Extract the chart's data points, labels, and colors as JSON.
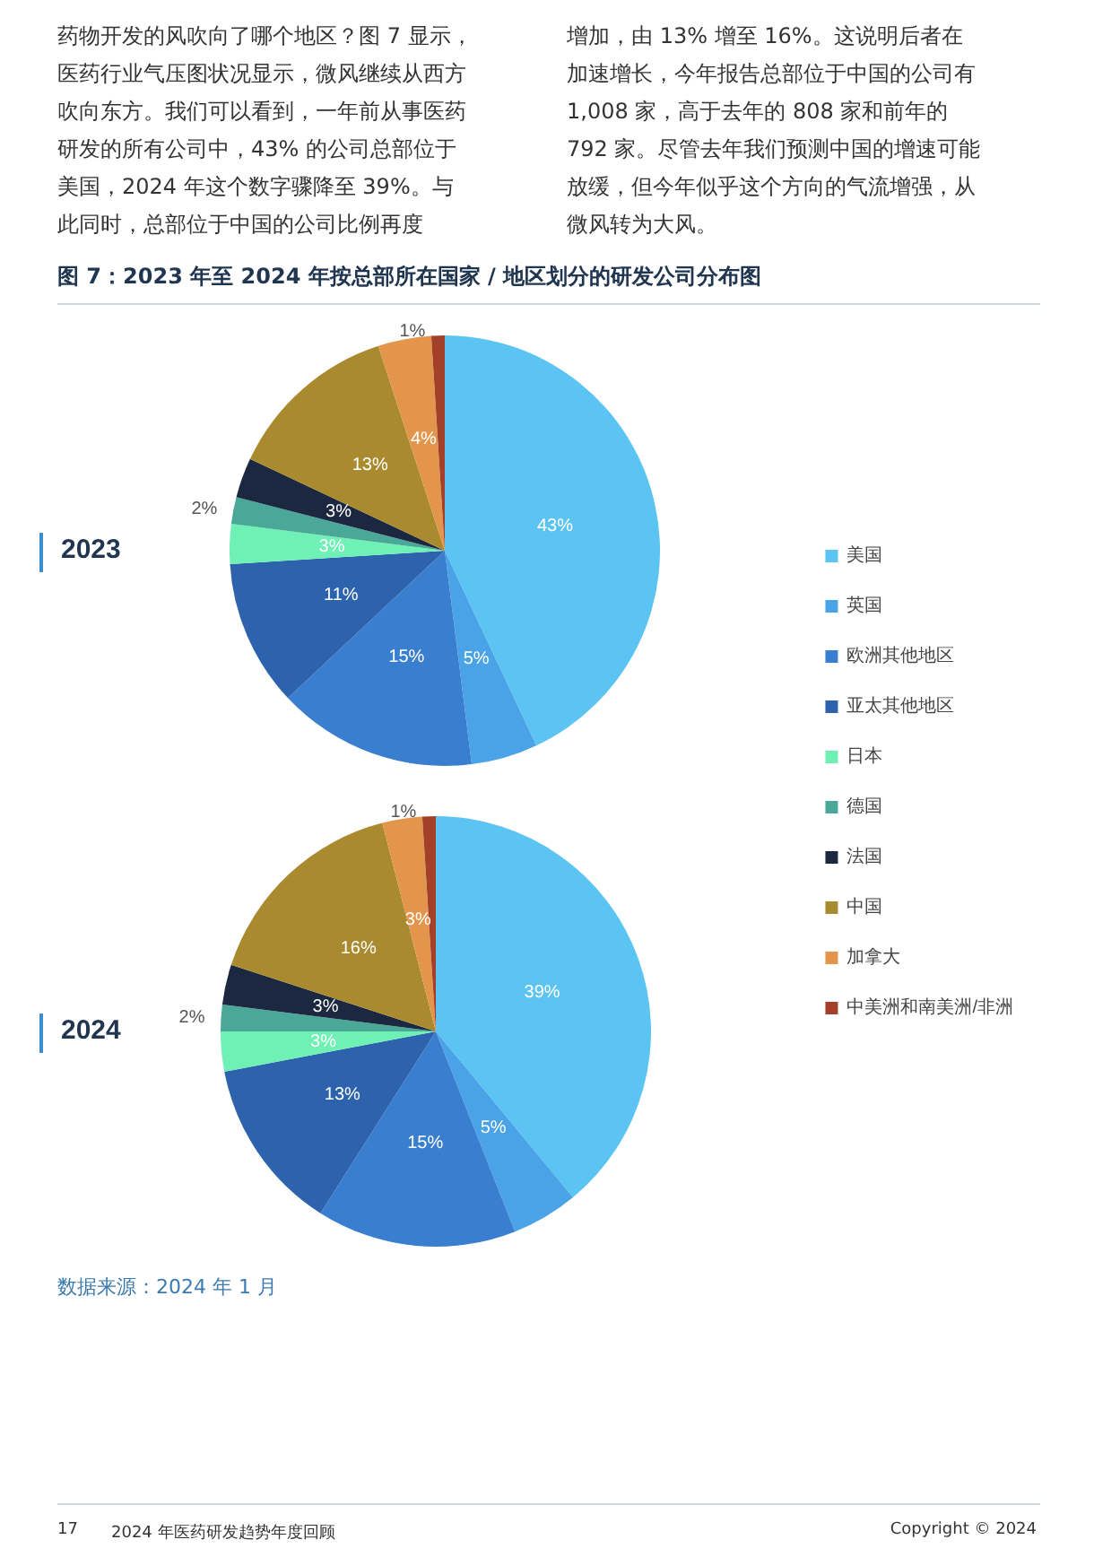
{
  "chart_data": {
    "type": "pie",
    "title": "图 7：2023 年至 2024 年按总部所在国家 / 地区划分的研发公司分布图",
    "annotations": [
      "药物开发的风吹向了哪个地区？图 7 显示，医药行业气压图状况显示，微风继续从西方吹向东方。我们可以看到，一年前从事医药研发的所有公司中，43% 的公司总部位于美国，2024 年这个数字骤降至 39%。与此同时，总部位于中国的公司比例再度",
      "增加，由 13% 增至 16%。这说明后者在加速增长，今年报告总部位于中国的公司有 1,008 家，高于去年的 808 家和前年的 792 家。尽管去年我们预测中国的增速可能放缓，但今年似乎这个方向的气流增强，从微风转为大风。",
      "数据来源：2024 年 1 月",
      "17",
      "2024 年医药研发趋势年度回顾",
      "Copyright © 2024"
    ],
    "categories": [
      "美国",
      "英国",
      "欧洲其他地区",
      "亚太其他地区",
      "日本",
      "德国",
      "法国",
      "中国",
      "加拿大",
      "中美洲和南美洲/非洲"
    ],
    "colors": [
      "#5bc4f2",
      "#4aa3e6",
      "#3a7ecf",
      "#2d62ad",
      "#6ff0b4",
      "#4aa898",
      "#1b2840",
      "#aa8a2e",
      "#e3954b",
      "#a2402a"
    ],
    "series": [
      {
        "name": "2023",
        "values": [
          43,
          5,
          15,
          11,
          3,
          2,
          3,
          13,
          4,
          1
        ],
        "value_labels": [
          "43%",
          "5%",
          "15%",
          "11%",
          "3%",
          "2%",
          "3%",
          "13%",
          "4%",
          "1%"
        ]
      },
      {
        "name": "2024",
        "values": [
          39,
          5,
          15,
          13,
          3,
          2,
          3,
          16,
          3,
          1
        ],
        "value_labels": [
          "39%",
          "5%",
          "15%",
          "13%",
          "3%",
          "2%",
          "3%",
          "16%",
          "3%",
          "1%"
        ]
      }
    ],
    "legend": "right"
  }
}
